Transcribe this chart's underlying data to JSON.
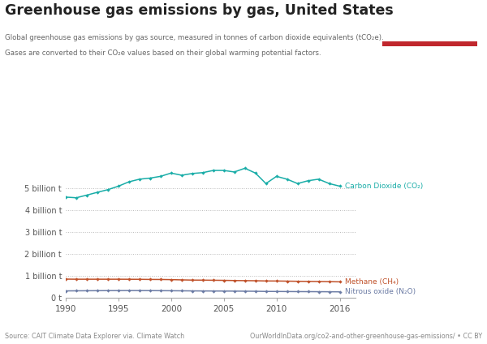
{
  "title": "Greenhouse gas emissions by gas, United States",
  "subtitle_line1": "Global greenhouse gas emissions by gas source, measured in tonnes of carbon dioxide equivalents (tCO₂e).",
  "subtitle_line2": "Gases are converted to their CO₂e values based on their global warming potential factors.",
  "source_left": "Source: CAIT Climate Data Explorer via. Climate Watch",
  "source_right": "OurWorldInData.org/co2-and-other-greenhouse-gas-emissions/ • CC BY",
  "years": [
    1990,
    1991,
    1992,
    1993,
    1994,
    1995,
    1996,
    1997,
    1998,
    1999,
    2000,
    2001,
    2002,
    2003,
    2004,
    2005,
    2006,
    2007,
    2008,
    2009,
    2010,
    2011,
    2012,
    2013,
    2014,
    2015,
    2016
  ],
  "co2": [
    4.6,
    4.57,
    4.69,
    4.82,
    4.94,
    5.1,
    5.3,
    5.42,
    5.47,
    5.55,
    5.7,
    5.6,
    5.68,
    5.72,
    5.82,
    5.82,
    5.75,
    5.92,
    5.7,
    5.22,
    5.55,
    5.42,
    5.22,
    5.35,
    5.42,
    5.22,
    5.1
  ],
  "ch4": [
    0.845,
    0.84,
    0.84,
    0.84,
    0.84,
    0.84,
    0.838,
    0.835,
    0.83,
    0.828,
    0.822,
    0.81,
    0.8,
    0.798,
    0.793,
    0.788,
    0.78,
    0.775,
    0.77,
    0.76,
    0.758,
    0.752,
    0.745,
    0.74,
    0.735,
    0.728,
    0.72
  ],
  "n2o": [
    0.305,
    0.308,
    0.312,
    0.315,
    0.318,
    0.32,
    0.322,
    0.32,
    0.318,
    0.315,
    0.312,
    0.308,
    0.305,
    0.302,
    0.3,
    0.298,
    0.295,
    0.292,
    0.288,
    0.28,
    0.278,
    0.275,
    0.272,
    0.27,
    0.268,
    0.265,
    0.262
  ],
  "co2_color": "#1aada8",
  "ch4_color": "#c0522b",
  "n2o_color": "#6b7ba4",
  "yticks": [
    0,
    1000000000,
    2000000000,
    3000000000,
    4000000000,
    5000000000
  ],
  "ytick_labels": [
    "0 t",
    "1 billion t",
    "2 billion t",
    "3 billion t",
    "4 billion t",
    "5 billion t"
  ],
  "ylim": [
    0,
    6300000000
  ],
  "background_color": "#ffffff",
  "logo_bg": "#1a3668",
  "logo_red": "#c0272d"
}
